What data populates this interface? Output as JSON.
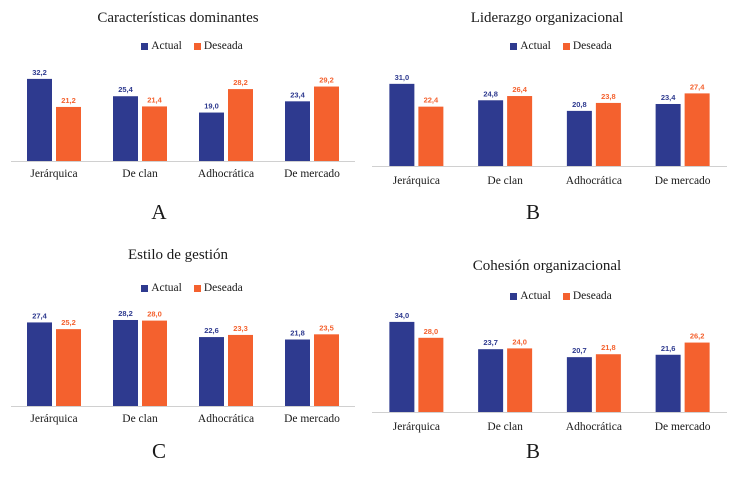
{
  "colors": {
    "actual": "#2e3a8f",
    "deseada": "#f4612e",
    "axis": "#d0d0d0"
  },
  "legend": {
    "actual": "Actual",
    "deseada": "Deseada"
  },
  "chart_data": [
    {
      "type": "bar",
      "title": "Características dominantes",
      "panel_label": "A",
      "categories": [
        "Jerárquica",
        "De clan",
        "Adhocrática",
        "De mercado"
      ],
      "series": [
        {
          "name": "Actual",
          "values": [
            32.2,
            25.4,
            19.0,
            23.4
          ],
          "labels": [
            "32,2",
            "25,4",
            "19,0",
            "23,4"
          ]
        },
        {
          "name": "Deseada",
          "values": [
            21.2,
            21.4,
            28.2,
            29.2
          ],
          "labels": [
            "21,2",
            "21,4",
            "28,2",
            "29,2"
          ]
        }
      ],
      "xlabel": "",
      "ylabel": "",
      "ylim": [
        0,
        34
      ],
      "legend_position": "top-center",
      "grid": false
    },
    {
      "type": "bar",
      "title": "Liderazgo organizacional",
      "panel_label": "B",
      "categories": [
        "Jerárquica",
        "De clan",
        "Adhocrática",
        "De mercado"
      ],
      "series": [
        {
          "name": "Actual",
          "values": [
            31.0,
            24.8,
            20.8,
            23.4
          ],
          "labels": [
            "31,0",
            "24,8",
            "20,8",
            "23,4"
          ]
        },
        {
          "name": "Deseada",
          "values": [
            22.4,
            26.4,
            23.8,
            27.4
          ],
          "labels": [
            "22,4",
            "26,4",
            "23,8",
            "27,4"
          ]
        }
      ],
      "xlabel": "",
      "ylabel": "",
      "ylim": [
        0,
        34
      ],
      "legend_position": "top-center",
      "grid": false
    },
    {
      "type": "bar",
      "title": "Estilo de gestión",
      "panel_label": "C",
      "categories": [
        "Jerárquica",
        "De clan",
        "Adhocrática",
        "De mercado"
      ],
      "series": [
        {
          "name": "Actual",
          "values": [
            27.4,
            28.2,
            22.6,
            21.8
          ],
          "labels": [
            "27,4",
            "28,2",
            "22,6",
            "21,8"
          ]
        },
        {
          "name": "Deseada",
          "values": [
            25.2,
            28.0,
            23.3,
            23.5
          ],
          "labels": [
            "25,2",
            "28,0",
            "23,3",
            "23,5"
          ]
        }
      ],
      "xlabel": "",
      "ylabel": "",
      "ylim": [
        0,
        30
      ],
      "legend_position": "top-center",
      "grid": false
    },
    {
      "type": "bar",
      "title": "Cohesión organizacional",
      "panel_label": "B",
      "categories": [
        "Jerárquica",
        "De clan",
        "Adhocrática",
        "De mercado"
      ],
      "series": [
        {
          "name": "Actual",
          "values": [
            34.0,
            23.7,
            20.7,
            21.6
          ],
          "labels": [
            "34,0",
            "23,7",
            "20,7",
            "21,6"
          ]
        },
        {
          "name": "Deseada",
          "values": [
            28.0,
            24.0,
            21.8,
            26.2
          ],
          "labels": [
            "28,0",
            "24,0",
            "21,8",
            "26,2"
          ]
        }
      ],
      "xlabel": "",
      "ylabel": "",
      "ylim": [
        0,
        36
      ],
      "legend_position": "top-center",
      "grid": false
    }
  ]
}
